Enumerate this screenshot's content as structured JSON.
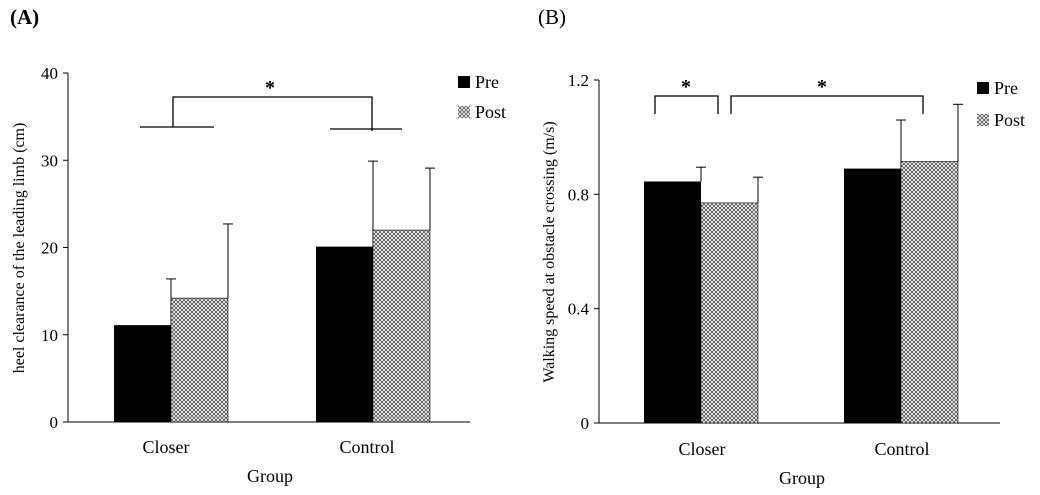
{
  "chart_data": [
    {
      "panel": "(A)",
      "type": "bar",
      "categories": [
        "Closer",
        "Control"
      ],
      "series": [
        {
          "name": "Pre",
          "values": [
            11.1,
            20.1
          ],
          "errors": [
            5.3,
            9.8
          ],
          "color": "#000000",
          "pattern": "solid"
        },
        {
          "name": "Post",
          "values": [
            14.2,
            22.0
          ],
          "errors": [
            8.5,
            7.1
          ],
          "color": "#ffffff",
          "pattern": "crosshatch"
        }
      ],
      "xlabel": "Group",
      "ylabel": "heel clearance of the leading limb (cm)",
      "ylim": [
        0,
        40
      ],
      "yticks": [
        0,
        10,
        20,
        30,
        40
      ],
      "yticklabels": [
        "0",
        "10",
        "20",
        "30",
        "40"
      ],
      "grid": false,
      "legend": "top-right",
      "annotations": [
        {
          "label": "*",
          "between": "Closer vs Control (group effect)"
        }
      ]
    },
    {
      "panel": "(B)",
      "type": "bar",
      "categories": [
        "Closer",
        "Control"
      ],
      "series": [
        {
          "name": "Pre",
          "values": [
            0.845,
            0.89
          ],
          "errors": [
            0.05,
            0.17
          ],
          "color": "#000000",
          "pattern": "solid"
        },
        {
          "name": "Post",
          "values": [
            0.77,
            0.915
          ],
          "errors": [
            0.09,
            0.2
          ],
          "color": "#ffffff",
          "pattern": "crosshatch"
        }
      ],
      "xlabel": "Group",
      "ylabel": "Walking speed at obstacle crossing (m/s)",
      "ylim": [
        0,
        1.2
      ],
      "yticks": [
        0,
        0.4,
        0.8,
        1.2
      ],
      "yticklabels": [
        "0",
        "0.4",
        "0.8",
        "1.2"
      ],
      "grid": false,
      "legend": "top-right",
      "annotations": [
        {
          "label": "*",
          "between": "Closer Pre vs Closer Post"
        },
        {
          "label": "*",
          "between": "Closer Post vs Control Post"
        }
      ]
    }
  ]
}
